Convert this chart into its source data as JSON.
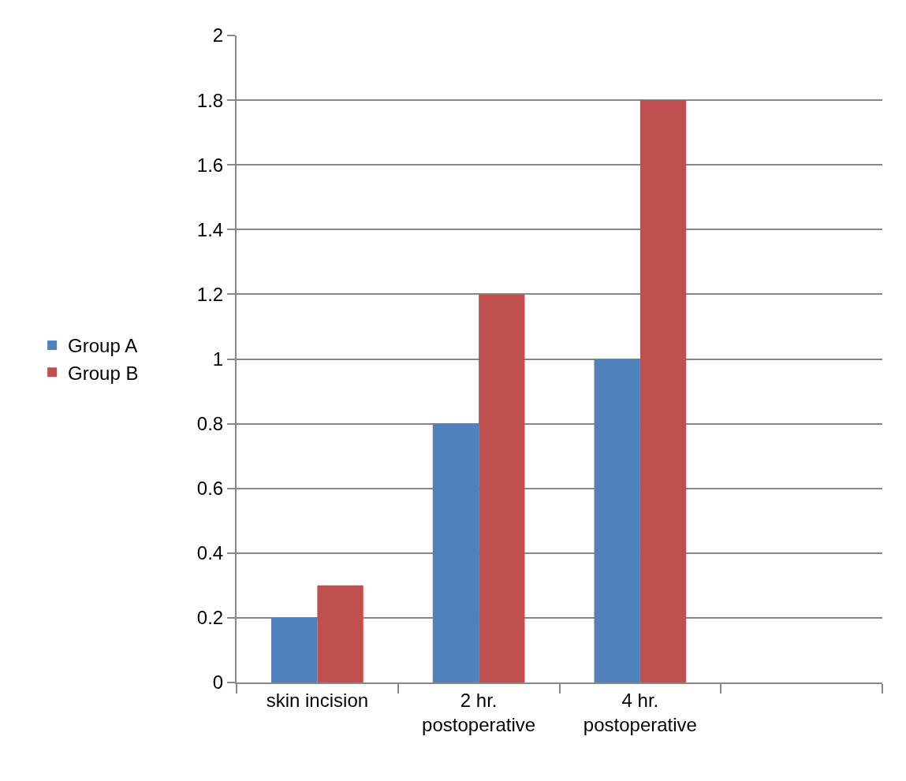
{
  "chart_data": {
    "type": "bar",
    "categories": [
      "skin incision",
      "2 hr.\npostoperative",
      "4 hr.\npostoperative",
      null
    ],
    "series": [
      {
        "name": "Group A",
        "color": "#4f81bd",
        "values": [
          0.2,
          0.8,
          1.0,
          null
        ]
      },
      {
        "name": "Group B",
        "color": "#c0504d",
        "values": [
          0.3,
          1.2,
          1.8,
          null
        ]
      }
    ],
    "ylim": [
      0,
      2
    ],
    "yticks": [
      0,
      0.2,
      0.4,
      0.6,
      0.8,
      1,
      1.2,
      1.4,
      1.6,
      1.8,
      2
    ],
    "grid": "y",
    "legend": "left"
  }
}
